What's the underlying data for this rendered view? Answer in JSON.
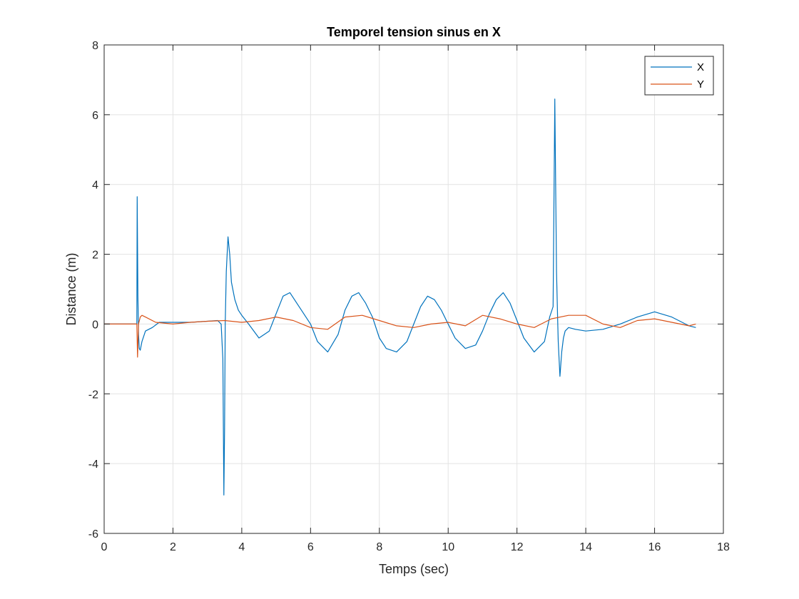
{
  "chart_data": {
    "type": "line",
    "title": "Temporel tension sinus en X",
    "xlabel": "Temps (sec)",
    "ylabel": "Distance (m)",
    "xlim": [
      0,
      18
    ],
    "ylim": [
      -6,
      8
    ],
    "xticks": [
      0,
      2,
      4,
      6,
      8,
      10,
      12,
      14,
      16,
      18
    ],
    "yticks": [
      -6,
      -4,
      -2,
      0,
      2,
      4,
      6,
      8
    ],
    "grid": true,
    "legend_position": "top-right",
    "series": [
      {
        "name": "X",
        "color": "#0072BD",
        "x": [
          0,
          0.95,
          0.96,
          0.98,
          1.0,
          1.02,
          1.05,
          1.1,
          1.2,
          1.4,
          1.6,
          2.0,
          2.5,
          3.0,
          3.3,
          3.4,
          3.45,
          3.48,
          3.5,
          3.52,
          3.55,
          3.6,
          3.65,
          3.7,
          3.8,
          3.9,
          4.0,
          4.2,
          4.5,
          4.8,
          5.0,
          5.2,
          5.4,
          5.6,
          5.8,
          6.0,
          6.2,
          6.5,
          6.8,
          7.0,
          7.2,
          7.4,
          7.6,
          7.8,
          8.0,
          8.2,
          8.5,
          8.8,
          9.0,
          9.2,
          9.4,
          9.6,
          9.8,
          10.0,
          10.2,
          10.5,
          10.8,
          11.0,
          11.2,
          11.4,
          11.6,
          11.8,
          12.0,
          12.2,
          12.5,
          12.8,
          12.95,
          13.05,
          13.1,
          13.15,
          13.18,
          13.2,
          13.25,
          13.3,
          13.35,
          13.4,
          13.5,
          13.7,
          14.0,
          14.5,
          15.0,
          15.5,
          16.0,
          16.5,
          17.0,
          17.2
        ],
        "y": [
          0,
          0,
          3.65,
          0.8,
          -0.3,
          -0.7,
          -0.75,
          -0.5,
          -0.2,
          -0.1,
          0.05,
          0.05,
          0.05,
          0.08,
          0.1,
          0.0,
          -1.0,
          -4.9,
          -3.0,
          0.0,
          1.5,
          2.5,
          2.0,
          1.2,
          0.7,
          0.4,
          0.25,
          0.0,
          -0.4,
          -0.2,
          0.3,
          0.8,
          0.9,
          0.6,
          0.3,
          0.0,
          -0.5,
          -0.8,
          -0.3,
          0.4,
          0.8,
          0.9,
          0.6,
          0.2,
          -0.4,
          -0.7,
          -0.8,
          -0.5,
          0.0,
          0.5,
          0.8,
          0.7,
          0.4,
          0.0,
          -0.4,
          -0.7,
          -0.6,
          -0.2,
          0.3,
          0.7,
          0.9,
          0.6,
          0.1,
          -0.4,
          -0.8,
          -0.5,
          0.2,
          0.5,
          6.45,
          1.5,
          0.2,
          -0.5,
          -1.5,
          -0.8,
          -0.4,
          -0.2,
          -0.1,
          -0.15,
          -0.2,
          -0.15,
          0.0,
          0.2,
          0.35,
          0.2,
          -0.05,
          -0.1
        ]
      },
      {
        "name": "Y",
        "color": "#D95319",
        "x": [
          0,
          0.95,
          0.97,
          1.0,
          1.05,
          1.1,
          1.2,
          1.5,
          2.0,
          2.5,
          3.0,
          3.5,
          4.0,
          4.5,
          5.0,
          5.5,
          6.0,
          6.5,
          7.0,
          7.5,
          8.0,
          8.5,
          9.0,
          9.5,
          10.0,
          10.5,
          11.0,
          11.5,
          12.0,
          12.5,
          13.0,
          13.5,
          14.0,
          14.5,
          15.0,
          15.5,
          16.0,
          16.5,
          17.0,
          17.2
        ],
        "y": [
          0,
          0,
          -0.95,
          0.0,
          0.2,
          0.25,
          0.2,
          0.05,
          0.0,
          0.05,
          0.08,
          0.1,
          0.05,
          0.1,
          0.2,
          0.1,
          -0.1,
          -0.15,
          0.2,
          0.25,
          0.1,
          -0.05,
          -0.1,
          0.0,
          0.05,
          -0.05,
          0.25,
          0.15,
          0.0,
          -0.1,
          0.15,
          0.25,
          0.25,
          0.0,
          -0.1,
          0.1,
          0.15,
          0.05,
          -0.05,
          0.0
        ]
      }
    ]
  }
}
